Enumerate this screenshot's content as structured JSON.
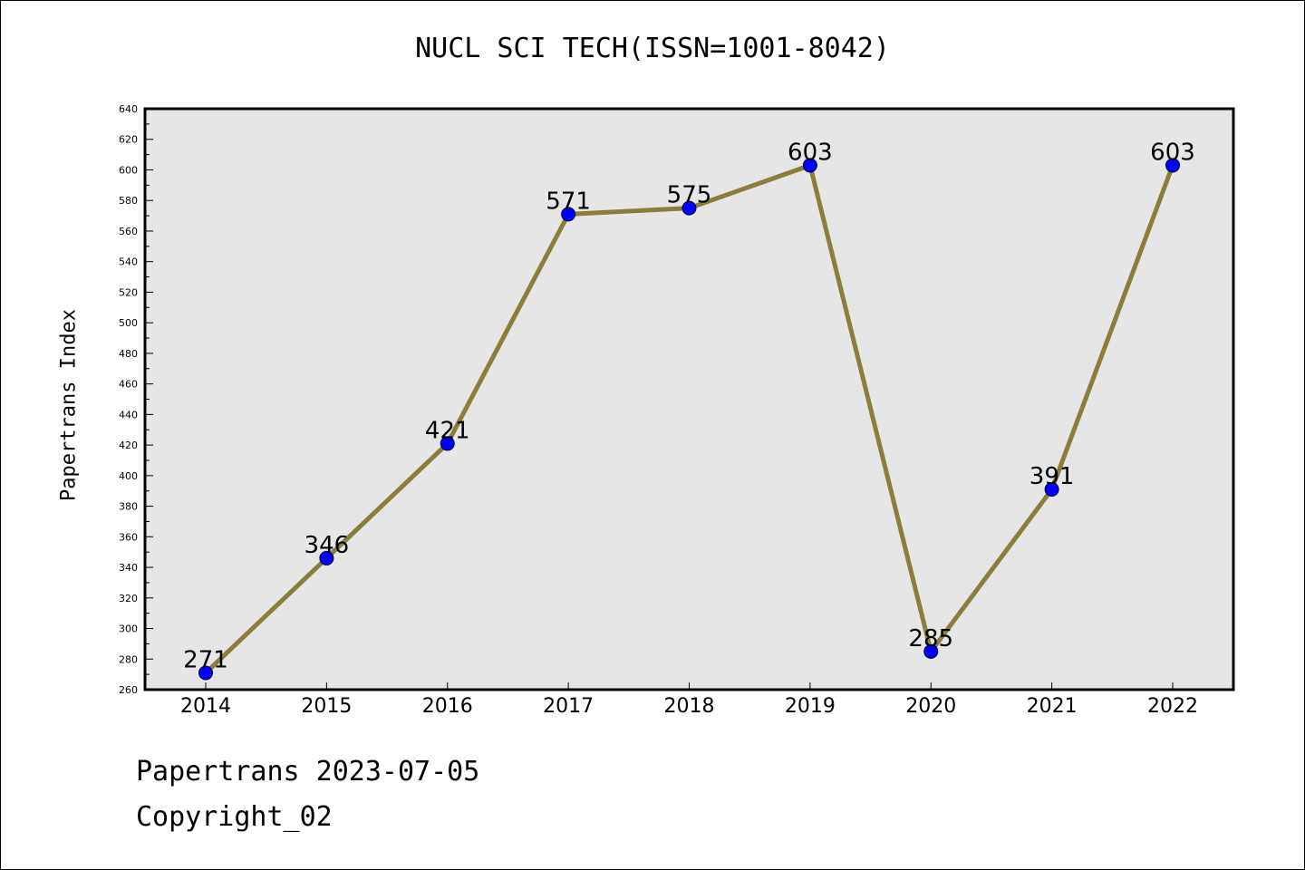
{
  "chart_data": {
    "type": "line",
    "title": "NUCL SCI TECH(ISSN=1001-8042)",
    "xlabel": "",
    "ylabel": "Papertrans Index",
    "categories": [
      "2014",
      "2015",
      "2016",
      "2017",
      "2018",
      "2019",
      "2020",
      "2021",
      "2022"
    ],
    "series": [
      {
        "values": [
          271,
          346,
          421,
          571,
          575,
          603,
          285,
          391,
          603
        ]
      }
    ],
    "data_labels": [
      "271",
      "346",
      "421",
      "571",
      "575",
      "603",
      "285",
      "391",
      "603"
    ],
    "ylim": [
      260,
      640
    ],
    "yticks": [
      260,
      280,
      300,
      320,
      340,
      360,
      380,
      400,
      420,
      440,
      460,
      480,
      500,
      520,
      540,
      560,
      580,
      600,
      620,
      640
    ],
    "ytick_labels": [
      "260",
      "280",
      "300",
      "320",
      "340",
      "360",
      "380",
      "400",
      "420",
      "440",
      "460",
      "480",
      "500",
      "520",
      "540",
      "560",
      "580",
      "600",
      "620",
      "640"
    ],
    "grid": false,
    "legend": "none",
    "colors": {
      "line": "#8b7d3a",
      "marker": "#0000ff",
      "plot_background": "#e6e6e6"
    }
  },
  "footer": {
    "date_text": "Papertrans 2023-07-05",
    "copyright_text": "Copyright_02"
  }
}
